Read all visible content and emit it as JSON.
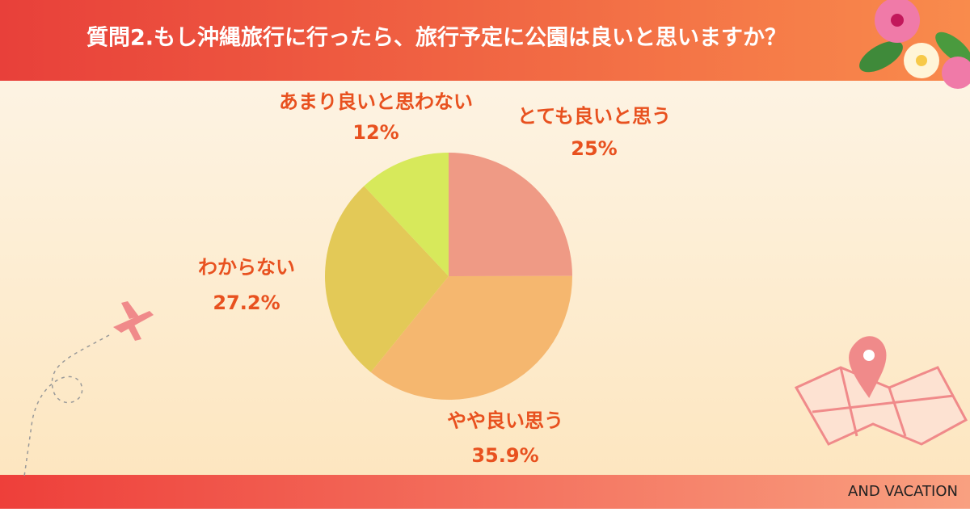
{
  "chart_data": {
    "type": "pie",
    "title": "質問2.もし沖縄旅行に行ったら、旅行予定に公園は良いと思いますか？",
    "categories": [
      "とても良いと思う",
      "やや良い思う",
      "わからない",
      "あまり良いと思わない"
    ],
    "values": [
      25,
      35.9,
      27.2,
      12
    ],
    "value_labels": [
      "25%",
      "35.9%",
      "27.2%",
      "12%"
    ],
    "colors": [
      "#ef9a85",
      "#f5b76f",
      "#e3c957",
      "#d7e95b"
    ],
    "credit": "AND VACATION"
  }
}
